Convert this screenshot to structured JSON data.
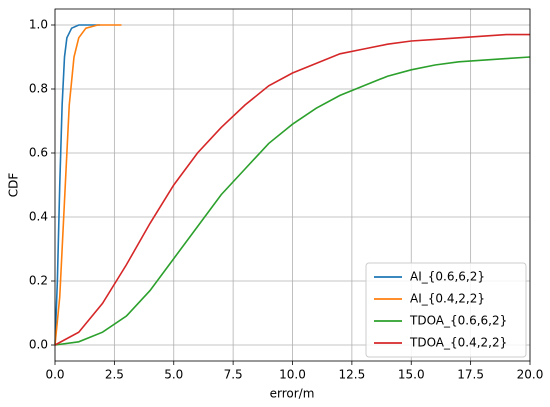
{
  "chart_data": {
    "type": "line",
    "x_label": "error/m",
    "y_label": "CDF",
    "xlim": [
      0,
      20
    ],
    "ylim": [
      -0.05,
      1.05
    ],
    "xticks": [
      {
        "value": 0,
        "label": "0.0"
      },
      2.5,
      {
        "value": 5,
        "label": "5.0"
      },
      7.5,
      {
        "value": 10,
        "label": "10.0"
      },
      12.5,
      {
        "value": 15,
        "label": "15.0"
      },
      17.5,
      {
        "value": 20,
        "label": "20.0"
      }
    ],
    "yticks": [
      {
        "value": 0,
        "label": "0.0"
      },
      0.2,
      0.4,
      0.6,
      0.8,
      {
        "value": 1,
        "label": "1.0"
      }
    ],
    "grid": true,
    "legend": "lower right",
    "series": [
      {
        "name": "AI_{0.6,6,2}",
        "color": "#1f77b4",
        "x": [
          0,
          0.1,
          0.2,
          0.3,
          0.4,
          0.5,
          0.7,
          1.0,
          1.9
        ],
        "values": [
          0,
          0.2,
          0.5,
          0.75,
          0.9,
          0.96,
          0.99,
          1.0,
          1.0
        ]
      },
      {
        "name": "AI_{0.4,2,2}",
        "color": "#ff7f0e",
        "x": [
          0,
          0.2,
          0.4,
          0.6,
          0.8,
          1.0,
          1.3,
          1.8,
          2.8
        ],
        "values": [
          0,
          0.15,
          0.45,
          0.75,
          0.9,
          0.96,
          0.99,
          1.0,
          1.0
        ]
      },
      {
        "name": "TDOA_{0.6,6,2}",
        "color": "#2ca02c",
        "x": [
          0,
          1,
          2,
          3,
          4,
          5,
          6,
          7,
          8,
          9,
          10,
          11,
          12,
          13,
          14,
          15,
          16,
          17,
          18,
          19,
          20
        ],
        "values": [
          0,
          0.01,
          0.04,
          0.09,
          0.17,
          0.27,
          0.37,
          0.47,
          0.55,
          0.63,
          0.69,
          0.74,
          0.78,
          0.81,
          0.84,
          0.86,
          0.875,
          0.885,
          0.89,
          0.895,
          0.9
        ]
      },
      {
        "name": "TDOA_{0.4,2,2}",
        "color": "#d62728",
        "x": [
          0,
          1,
          2,
          3,
          4,
          5,
          6,
          7,
          8,
          9,
          10,
          11,
          12,
          13,
          14,
          15,
          16,
          17,
          18,
          19,
          20
        ],
        "values": [
          0,
          0.04,
          0.13,
          0.25,
          0.38,
          0.5,
          0.6,
          0.68,
          0.75,
          0.81,
          0.85,
          0.88,
          0.91,
          0.925,
          0.94,
          0.95,
          0.955,
          0.96,
          0.965,
          0.97,
          0.97
        ]
      }
    ]
  }
}
